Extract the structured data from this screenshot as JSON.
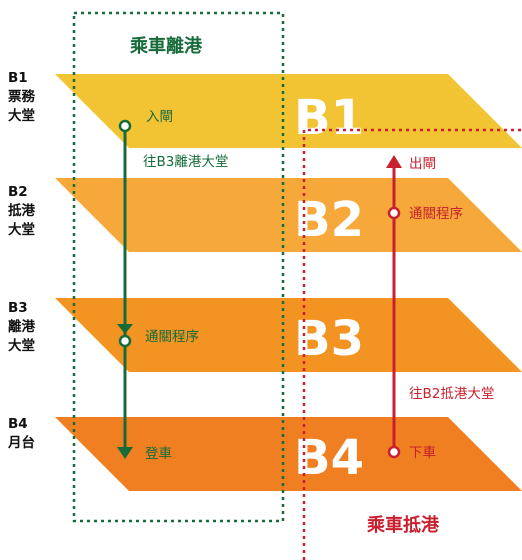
{
  "colors": {
    "floor_b1": "#F2C434",
    "floor_b2": "#F6A93A",
    "floor_b3": "#F39322",
    "floor_b4": "#F07F22",
    "departure": "#176B3A",
    "arrival": "#C8202F",
    "text_dark": "#111111"
  },
  "floors": [
    {
      "id": "b1",
      "code": "B1",
      "name_line1": "票務",
      "name_line2": "大堂",
      "big_label": "B1"
    },
    {
      "id": "b2",
      "code": "B2",
      "name_line1": "抵港",
      "name_line2": "大堂",
      "big_label": "B2"
    },
    {
      "id": "b3",
      "code": "B3",
      "name_line1": "離港",
      "name_line2": "大堂",
      "big_label": "B3"
    },
    {
      "id": "b4",
      "code": "B4",
      "name_line1": "月台",
      "name_line2": "",
      "big_label": "B4"
    }
  ],
  "departure": {
    "title": "乘車離港",
    "step_entry": "入閘",
    "transfer_label": "往B3離港大堂",
    "step_procedure": "通關程序",
    "step_board": "登車"
  },
  "arrival": {
    "title": "乘車抵港",
    "step_alight": "下車",
    "transfer_label": "往B2抵港大堂",
    "step_procedure": "通關程序",
    "step_exit": "出閘"
  }
}
